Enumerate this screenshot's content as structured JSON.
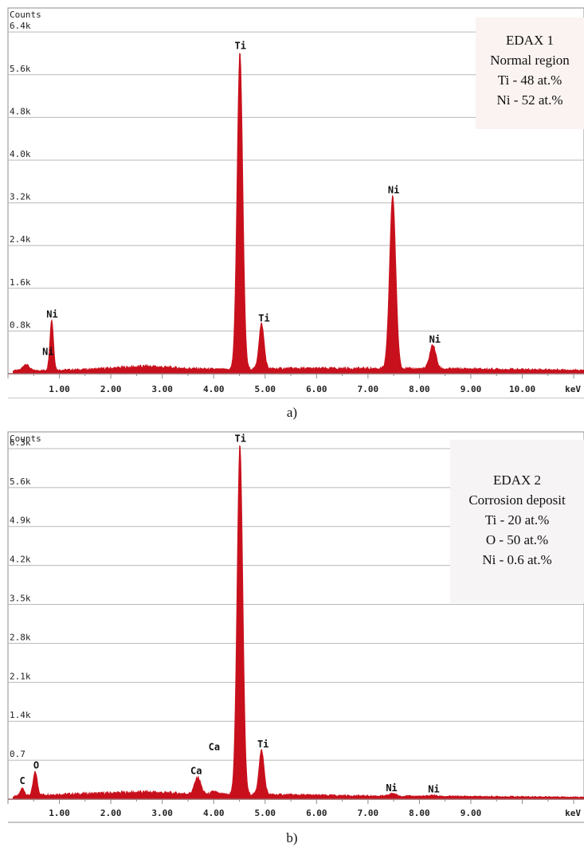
{
  "colors": {
    "spectrum": "#c8101c",
    "grid": "#b8b8b8",
    "axis": "#8c8c8c",
    "text": "#222222",
    "box_bg": "#faf3f1"
  },
  "chart_data": [
    {
      "type": "area",
      "panel_label": "a)",
      "y_axis_title": "Counts",
      "x_unit": "keV",
      "ylim": [
        0,
        6.85
      ],
      "xlim": [
        0.0,
        11.2
      ],
      "grid": true,
      "y_ticks": [
        {
          "value": 0.8,
          "label": "0.8k"
        },
        {
          "value": 1.6,
          "label": "1.6k"
        },
        {
          "value": 2.4,
          "label": "2.4k"
        },
        {
          "value": 3.2,
          "label": "3.2k"
        },
        {
          "value": 4.0,
          "label": "4.0k"
        },
        {
          "value": 4.8,
          "label": "4.8k"
        },
        {
          "value": 5.6,
          "label": "5.6k"
        },
        {
          "value": 6.4,
          "label": "6.4k"
        }
      ],
      "x_ticks": [
        {
          "value": 1,
          "label": "1.00"
        },
        {
          "value": 2,
          "label": "2.00"
        },
        {
          "value": 3,
          "label": "3.00"
        },
        {
          "value": 4,
          "label": "4.00"
        },
        {
          "value": 5,
          "label": "5.00"
        },
        {
          "value": 6,
          "label": "6.00"
        },
        {
          "value": 7,
          "label": "7.00"
        },
        {
          "value": 8,
          "label": "8.00"
        },
        {
          "value": 9,
          "label": "9.00"
        },
        {
          "value": 10,
          "label": "10.00"
        }
      ],
      "background": [
        [
          0.1,
          0.06
        ],
        [
          0.5,
          0.06
        ],
        [
          1.5,
          0.08
        ],
        [
          2.7,
          0.14
        ],
        [
          3.5,
          0.1
        ],
        [
          4.2,
          0.08
        ],
        [
          5.5,
          0.1
        ],
        [
          7.0,
          0.1
        ],
        [
          9.0,
          0.09
        ],
        [
          11.2,
          0.07
        ]
      ],
      "peaks": [
        {
          "energy": 0.35,
          "height": 0.12,
          "width": 0.06
        },
        {
          "energy": 0.85,
          "height": 0.95,
          "width": 0.035
        },
        {
          "energy": 4.51,
          "height": 5.95,
          "width": 0.055
        },
        {
          "energy": 4.93,
          "height": 0.85,
          "width": 0.05
        },
        {
          "energy": 7.48,
          "height": 3.25,
          "width": 0.06
        },
        {
          "energy": 8.26,
          "height": 0.45,
          "width": 0.06
        }
      ],
      "peak_labels": [
        {
          "text": "Ni",
          "x": 0.86,
          "y": 1.05
        },
        {
          "text": "Ni",
          "x": 0.78,
          "y": 0.35
        },
        {
          "text": "Ti",
          "x": 4.52,
          "y": 6.08
        },
        {
          "text": "Ti",
          "x": 4.98,
          "y": 0.98
        },
        {
          "text": "Ni",
          "x": 7.5,
          "y": 3.38
        },
        {
          "text": "Ni",
          "x": 8.3,
          "y": 0.58
        }
      ],
      "info_box": [
        "EDAX 1",
        "Normal region",
        "Ti - 48 at.%",
        "Ni - 52 at.%"
      ]
    },
    {
      "type": "area",
      "panel_label": "b)",
      "y_axis_title": "Counts",
      "x_unit": "keV",
      "ylim": [
        0,
        6.6
      ],
      "xlim": [
        0.0,
        11.2
      ],
      "grid": true,
      "y_ticks": [
        {
          "value": 0.7,
          "label": "0.7"
        },
        {
          "value": 1.4,
          "label": "1.4k"
        },
        {
          "value": 2.1,
          "label": "2.1k"
        },
        {
          "value": 2.8,
          "label": "2.8k"
        },
        {
          "value": 3.5,
          "label": "3.5k"
        },
        {
          "value": 4.2,
          "label": "4.2k"
        },
        {
          "value": 4.9,
          "label": "4.9k"
        },
        {
          "value": 5.6,
          "label": "5.6k"
        },
        {
          "value": 6.3,
          "label": "6.3k"
        }
      ],
      "x_ticks": [
        {
          "value": 1,
          "label": "1.00"
        },
        {
          "value": 2,
          "label": "2.00"
        },
        {
          "value": 3,
          "label": "3.00"
        },
        {
          "value": 4,
          "label": "4.00"
        },
        {
          "value": 5,
          "label": "5.00"
        },
        {
          "value": 6,
          "label": "6.00"
        },
        {
          "value": 7,
          "label": "7.00"
        },
        {
          "value": 8,
          "label": "8.00"
        },
        {
          "value": 9,
          "label": "9.00"
        }
      ],
      "background": [
        [
          0.1,
          0.05
        ],
        [
          0.6,
          0.08
        ],
        [
          1.5,
          0.1
        ],
        [
          2.7,
          0.13
        ],
        [
          3.5,
          0.1
        ],
        [
          4.2,
          0.09
        ],
        [
          5.5,
          0.08
        ],
        [
          7.0,
          0.06
        ],
        [
          9.0,
          0.05
        ],
        [
          11.2,
          0.04
        ]
      ],
      "peaks": [
        {
          "energy": 0.28,
          "height": 0.14,
          "width": 0.04
        },
        {
          "energy": 0.53,
          "height": 0.42,
          "width": 0.04
        },
        {
          "energy": 3.69,
          "height": 0.3,
          "width": 0.06
        },
        {
          "energy": 4.01,
          "height": 0.05,
          "width": 0.05
        },
        {
          "energy": 4.51,
          "height": 6.3,
          "width": 0.055
        },
        {
          "energy": 4.93,
          "height": 0.8,
          "width": 0.05
        },
        {
          "energy": 7.48,
          "height": 0.05,
          "width": 0.06
        },
        {
          "energy": 8.26,
          "height": 0.02,
          "width": 0.06
        }
      ],
      "peak_labels": [
        {
          "text": "C",
          "x": 0.28,
          "y": 0.27
        },
        {
          "text": "O",
          "x": 0.55,
          "y": 0.55
        },
        {
          "text": "Ca",
          "x": 3.66,
          "y": 0.45
        },
        {
          "text": "Ca",
          "x": 4.01,
          "y": 0.88
        },
        {
          "text": "Ti",
          "x": 4.52,
          "y": 6.42
        },
        {
          "text": "Ti",
          "x": 4.96,
          "y": 0.93
        },
        {
          "text": "Ni",
          "x": 7.46,
          "y": 0.14
        },
        {
          "text": "Ni",
          "x": 8.28,
          "y": 0.12
        }
      ],
      "info_box": [
        "EDAX 2",
        "Corrosion deposit",
        "Ti - 20 at.%",
        "O - 50 at.%",
        "Ni - 0.6 at.%"
      ]
    }
  ]
}
